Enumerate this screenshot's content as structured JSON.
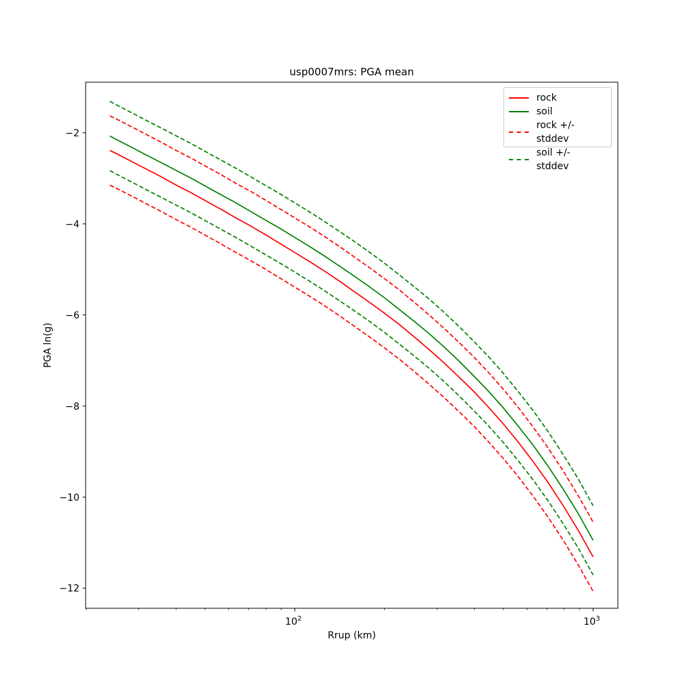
{
  "chart_data": {
    "type": "line",
    "title": "usp0007mrs: PGA mean",
    "xlabel": "Rrup (km)",
    "ylabel": "PGA ln(g)",
    "xscale": "log",
    "xlim": [
      19.9,
      1210
    ],
    "ylim": [
      -12.44,
      -0.89
    ],
    "yticks": [
      -2,
      -4,
      -6,
      -8,
      -10,
      -12
    ],
    "xticks": [
      100,
      1000
    ],
    "xtick_labels": [
      "10^2",
      "10^3"
    ],
    "grid": false,
    "stddev": 0.76,
    "x": [
      24.0,
      25.1,
      28.2,
      31.6,
      35.5,
      39.8,
      44.7,
      50.1,
      56.2,
      63.1,
      70.8,
      79.4,
      89.1,
      100.0,
      112.2,
      125.9,
      141.3,
      158.5,
      177.8,
      199.5,
      223.9,
      251.2,
      281.8,
      316.2,
      354.8,
      398.1,
      446.7,
      501.2,
      562.3,
      631.0,
      707.9,
      794.3,
      891.3,
      1000.0
    ],
    "series": [
      {
        "name": "rock",
        "color": "#ff0000",
        "style": "solid",
        "values": [
          -2.39,
          -2.45,
          -2.62,
          -2.79,
          -2.96,
          -3.14,
          -3.31,
          -3.49,
          -3.67,
          -3.86,
          -4.04,
          -4.23,
          -4.43,
          -4.63,
          -4.83,
          -5.04,
          -5.26,
          -5.49,
          -5.72,
          -5.96,
          -6.21,
          -6.48,
          -6.76,
          -7.05,
          -7.36,
          -7.68,
          -8.03,
          -8.4,
          -8.8,
          -9.23,
          -9.69,
          -10.19,
          -10.73,
          -11.31
        ]
      },
      {
        "name": "soil",
        "color": "#008000",
        "style": "solid",
        "values": [
          -2.07,
          -2.14,
          -2.31,
          -2.48,
          -2.65,
          -2.82,
          -2.99,
          -3.17,
          -3.35,
          -3.53,
          -3.72,
          -3.91,
          -4.1,
          -4.3,
          -4.5,
          -4.71,
          -4.93,
          -5.15,
          -5.38,
          -5.62,
          -5.88,
          -6.14,
          -6.41,
          -6.7,
          -7.01,
          -7.34,
          -7.68,
          -8.05,
          -8.45,
          -8.87,
          -9.33,
          -9.83,
          -10.36,
          -10.95
        ]
      },
      {
        "name": "rock +/- stddev",
        "color": "#ff0000",
        "style": "dashed",
        "derived_from": "rock",
        "offset": 0.76
      },
      {
        "name": "soil +/- stddev",
        "color": "#008000",
        "style": "dashed",
        "derived_from": "soil",
        "offset": 0.76
      }
    ],
    "legend": {
      "position": "upper right",
      "entries": [
        {
          "label": "rock",
          "color": "#ff0000",
          "style": "solid"
        },
        {
          "label": "soil",
          "color": "#008000",
          "style": "solid"
        },
        {
          "label": "rock +/- stddev",
          "color": "#ff0000",
          "style": "dashed"
        },
        {
          "label": "soil +/- stddev",
          "color": "#008000",
          "style": "dashed"
        }
      ]
    }
  }
}
